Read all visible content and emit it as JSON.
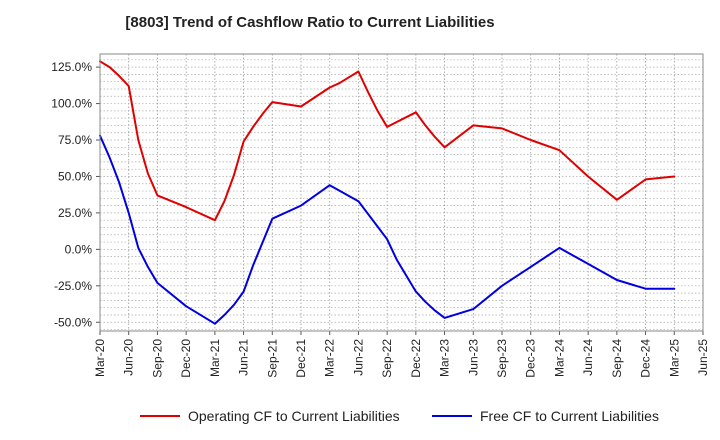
{
  "chart_data": {
    "type": "line",
    "title": "[8803]  Trend of Cashflow Ratio to Current Liabilities",
    "xlabel": "",
    "ylabel": "",
    "x_ticks": [
      "Mar-20",
      "Jun-20",
      "Sep-20",
      "Dec-20",
      "Mar-21",
      "Jun-21",
      "Sep-21",
      "Dec-21",
      "Mar-22",
      "Jun-22",
      "Sep-22",
      "Dec-22",
      "Mar-23",
      "Jun-23",
      "Sep-23",
      "Dec-23",
      "Mar-24",
      "Jun-24",
      "Sep-24",
      "Dec-24",
      "Mar-25",
      "Jun-25"
    ],
    "y_ticks": [
      {
        "value": 125,
        "label": "125.0%"
      },
      {
        "value": 100,
        "label": "100.0%"
      },
      {
        "value": 75,
        "label": "75.0%"
      },
      {
        "value": 50,
        "label": "50.0%"
      },
      {
        "value": 25,
        "label": "25.0%"
      },
      {
        "value": 0,
        "label": "0.0%"
      },
      {
        "value": -25,
        "label": "-25.0%"
      },
      {
        "value": -50,
        "label": "-50.0%"
      }
    ],
    "ylim": [
      -56,
      134
    ],
    "grid": true,
    "legend_position": "bottom",
    "series": [
      {
        "name": "Operating CF to Current Liabilities",
        "color": "#e00000",
        "points": [
          [
            "Mar-20",
            129
          ],
          [
            "Apr-20",
            125
          ],
          [
            "May-20",
            119
          ],
          [
            "Jun-20",
            112
          ],
          [
            "Jul-20",
            75
          ],
          [
            "Aug-20",
            52
          ],
          [
            "Sep-20",
            37
          ],
          [
            "Dec-20",
            29
          ],
          [
            "Mar-21",
            20
          ],
          [
            "Apr-21",
            33
          ],
          [
            "May-21",
            51
          ],
          [
            "Jun-21",
            74
          ],
          [
            "Jul-21",
            84
          ],
          [
            "Aug-21",
            93
          ],
          [
            "Sep-21",
            101
          ],
          [
            "Dec-21",
            98
          ],
          [
            "Mar-22",
            111
          ],
          [
            "Apr-22",
            114
          ],
          [
            "May-22",
            118
          ],
          [
            "Jun-22",
            122
          ],
          [
            "Jul-22",
            108
          ],
          [
            "Aug-22",
            95
          ],
          [
            "Sep-22",
            84
          ],
          [
            "Dec-22",
            94
          ],
          [
            "Jan-23",
            85
          ],
          [
            "Feb-23",
            77
          ],
          [
            "Mar-23",
            70
          ],
          [
            "Jun-23",
            85
          ],
          [
            "Sep-23",
            83
          ],
          [
            "Dec-23",
            75
          ],
          [
            "Mar-24",
            68
          ],
          [
            "Jun-24",
            50
          ],
          [
            "Sep-24",
            34
          ],
          [
            "Dec-24",
            48
          ],
          [
            "Mar-25",
            50
          ]
        ]
      },
      {
        "name": "Free CF to Current Liabilities",
        "color": "#0000e0",
        "points": [
          [
            "Mar-20",
            78
          ],
          [
            "Apr-20",
            63
          ],
          [
            "May-20",
            46
          ],
          [
            "Jun-20",
            25
          ],
          [
            "Jul-20",
            1
          ],
          [
            "Aug-20",
            -12
          ],
          [
            "Sep-20",
            -23
          ],
          [
            "Dec-20",
            -39
          ],
          [
            "Mar-21",
            -51
          ],
          [
            "Apr-21",
            -45
          ],
          [
            "May-21",
            -38
          ],
          [
            "Jun-21",
            -29
          ],
          [
            "Jul-21",
            -11
          ],
          [
            "Aug-21",
            5
          ],
          [
            "Sep-21",
            21
          ],
          [
            "Dec-21",
            30
          ],
          [
            "Mar-22",
            44
          ],
          [
            "Jun-22",
            33
          ],
          [
            "Sep-22",
            7
          ],
          [
            "Oct-22",
            -7
          ],
          [
            "Nov-22",
            -18
          ],
          [
            "Dec-22",
            -29
          ],
          [
            "Jan-23",
            -36
          ],
          [
            "Feb-23",
            -42
          ],
          [
            "Mar-23",
            -47
          ],
          [
            "Jun-23",
            -41
          ],
          [
            "Sep-23",
            -25
          ],
          [
            "Dec-23",
            -12
          ],
          [
            "Mar-24",
            1
          ],
          [
            "Jun-24",
            -10
          ],
          [
            "Sep-24",
            -21
          ],
          [
            "Dec-24",
            -27
          ],
          [
            "Mar-25",
            -27
          ]
        ]
      }
    ]
  }
}
